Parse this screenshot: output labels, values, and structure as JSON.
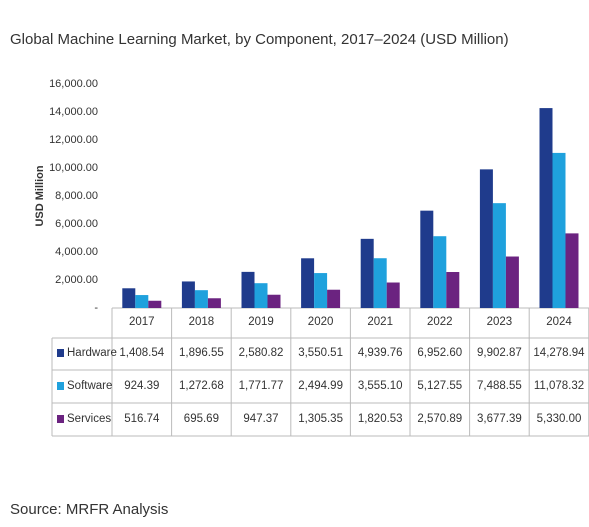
{
  "chart_data": {
    "type": "bar",
    "title": "Global Machine Learning Market, by Component, 2017–2024 (USD Million)",
    "y_label": "USD Million",
    "source": "Source: MRFR Analysis",
    "categories": [
      "2017",
      "2018",
      "2019",
      "2020",
      "2021",
      "2022",
      "2023",
      "2024"
    ],
    "series": [
      {
        "name": "Hardware",
        "color": "#1f3b8c",
        "values": [
          1408.54,
          1896.55,
          2580.82,
          3550.51,
          4939.76,
          6952.6,
          9902.87,
          14278.94
        ],
        "value_labels": [
          "1,408.54",
          "1,896.55",
          "2,580.82",
          "3,550.51",
          "4,939.76",
          "6,952.60",
          "9,902.87",
          "14,278.94"
        ]
      },
      {
        "name": "Software",
        "color": "#1fa1dd",
        "values": [
          924.39,
          1272.68,
          1771.77,
          2494.99,
          3555.1,
          5127.55,
          7488.55,
          11078.32
        ],
        "value_labels": [
          "924.39",
          "1,272.68",
          "1,771.77",
          "2,494.99",
          "3,555.10",
          "5,127.55",
          "7,488.55",
          "11,078.32"
        ]
      },
      {
        "name": "Services",
        "color": "#6b2380",
        "values": [
          516.74,
          695.69,
          947.37,
          1305.35,
          1820.53,
          2570.89,
          3677.39,
          5330.0
        ],
        "value_labels": [
          "516.74",
          "695.69",
          "947.37",
          "1,305.35",
          "1,820.53",
          "2,570.89",
          "3,677.39",
          "5,330.00"
        ]
      }
    ],
    "ylim": [
      0,
      16000
    ],
    "yticks": [
      {
        "value": 0,
        "label": "-"
      },
      {
        "value": 2000,
        "label": "2,000.00"
      },
      {
        "value": 4000,
        "label": "4,000.00"
      },
      {
        "value": 6000,
        "label": "6,000.00"
      },
      {
        "value": 8000,
        "label": "8,000.00"
      },
      {
        "value": 10000,
        "label": "10,000.00"
      },
      {
        "value": 12000,
        "label": "12,000.00"
      },
      {
        "value": 14000,
        "label": "14,000.00"
      },
      {
        "value": 16000,
        "label": "16,000.00"
      }
    ],
    "grid": false
  }
}
